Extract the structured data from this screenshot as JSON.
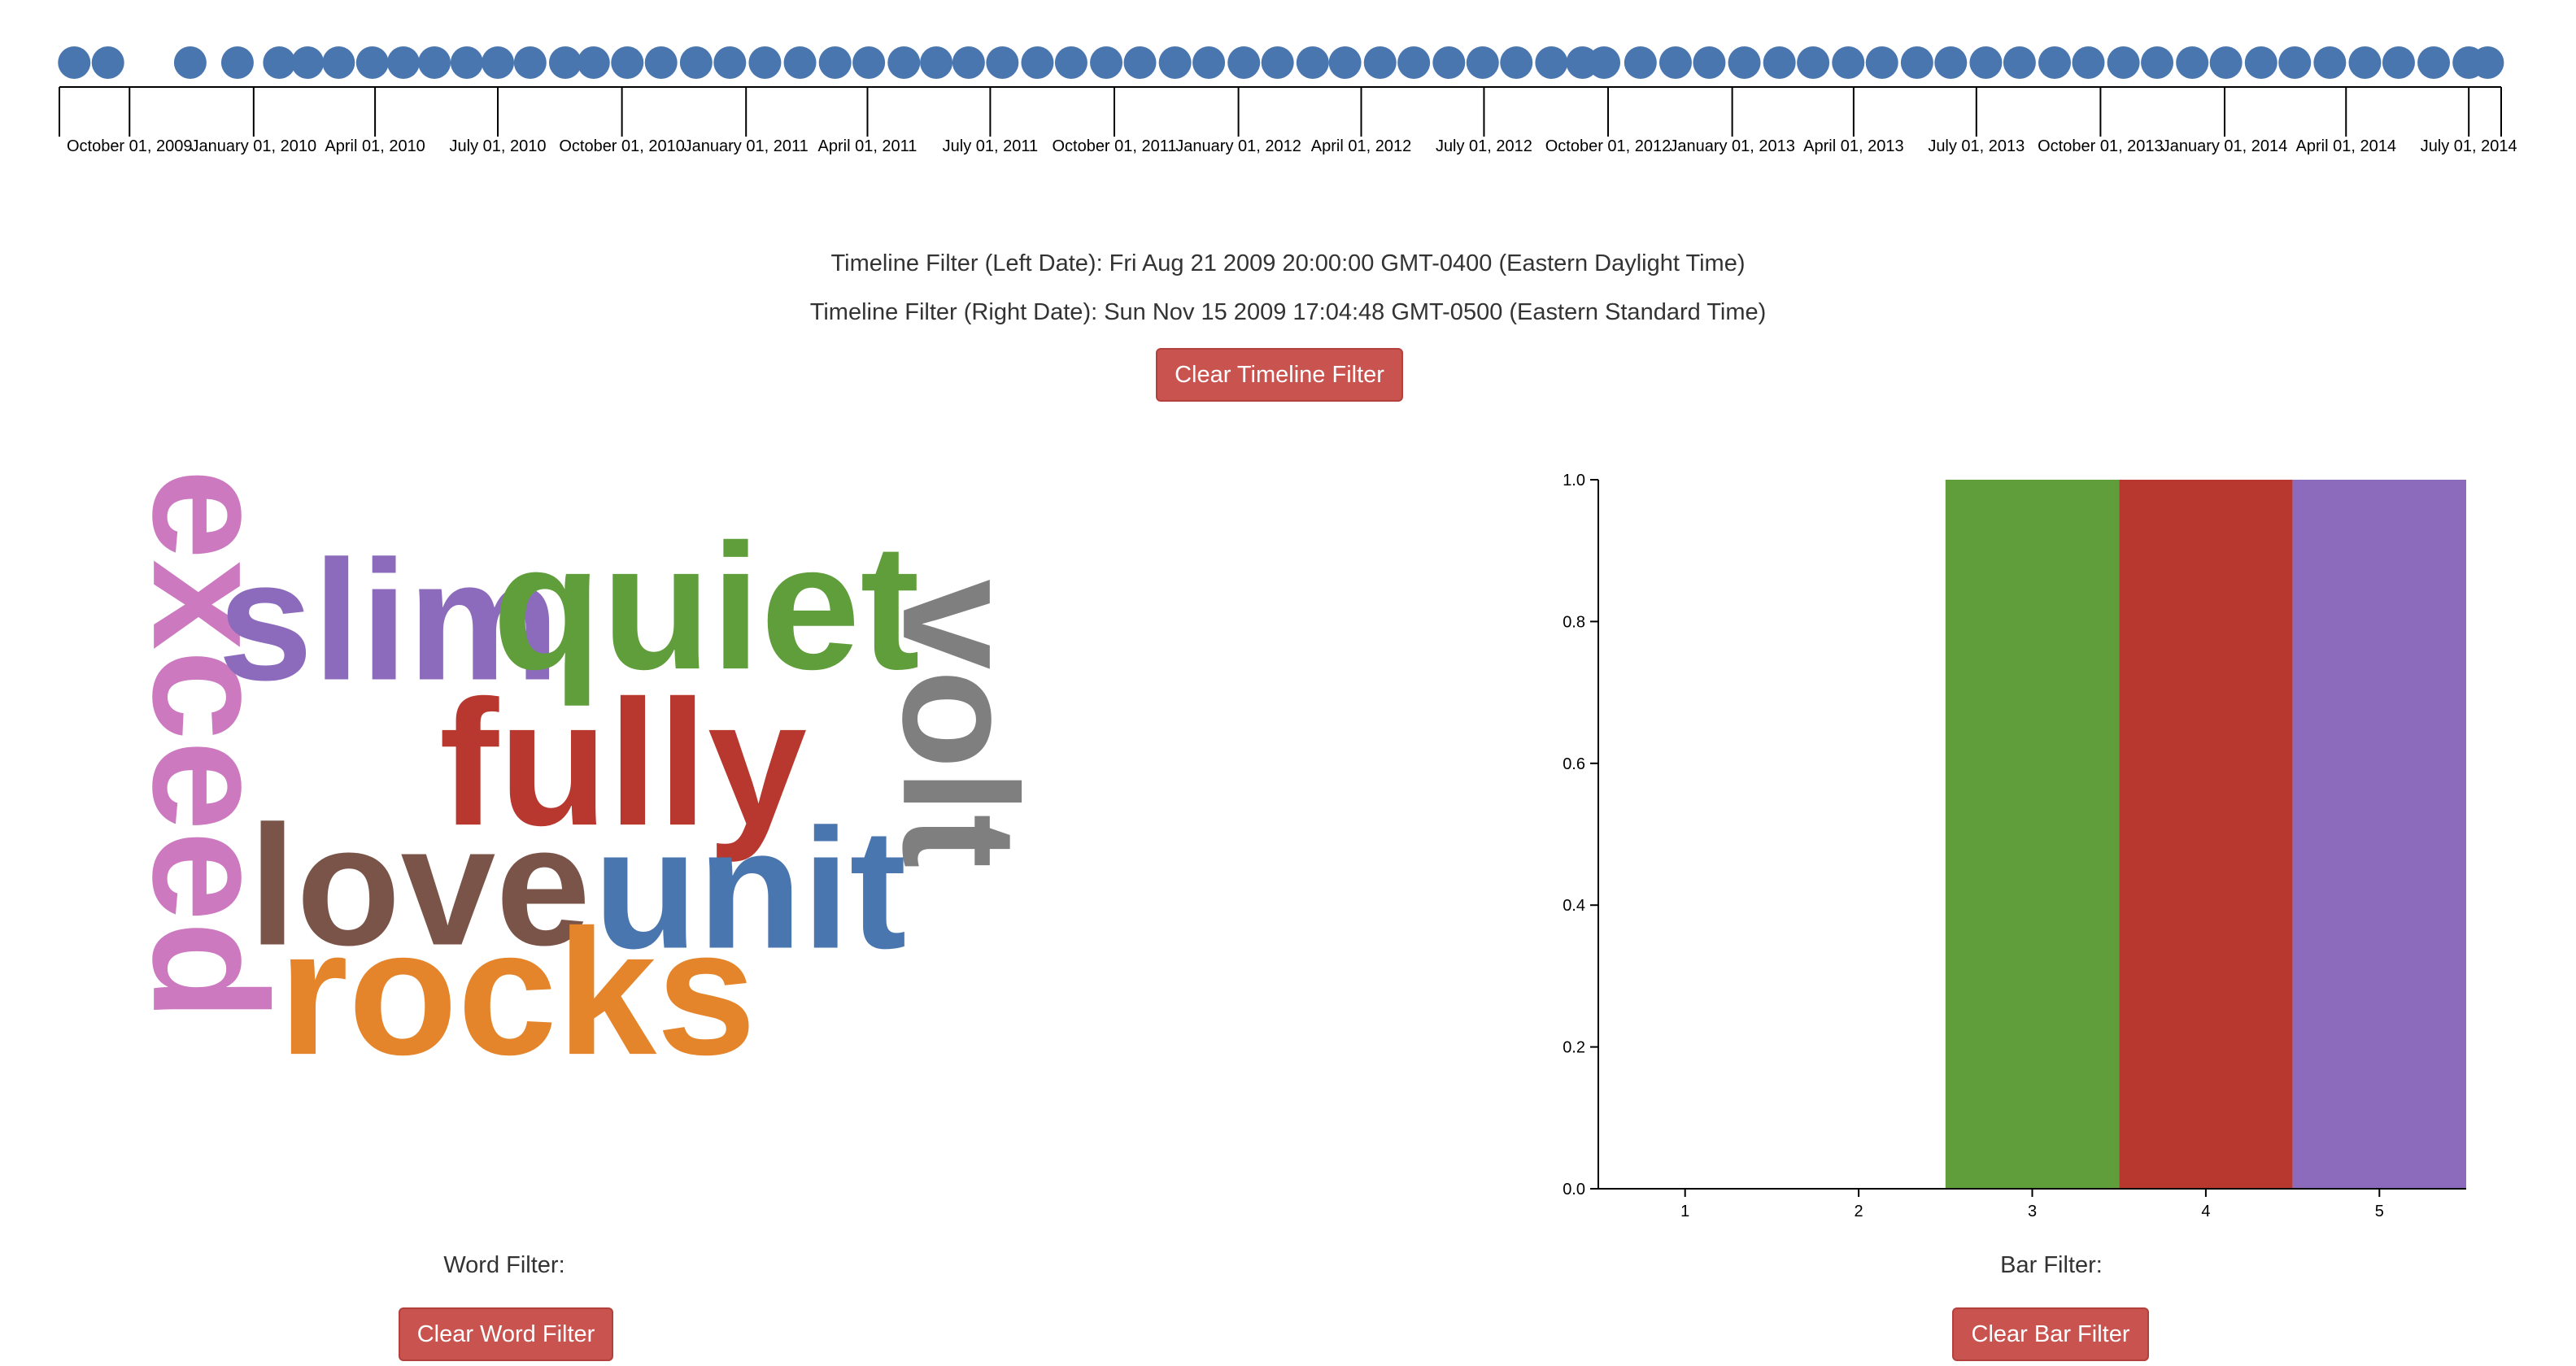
{
  "timeline": {
    "ticks": [
      "October 01, 2009",
      "January 01, 2010",
      "April 01, 2010",
      "July 01, 2010",
      "October 01, 2010",
      "January 01, 2011",
      "April 01, 2011",
      "July 01, 2011",
      "October 01, 2011",
      "January 01, 2012",
      "April 01, 2012",
      "July 01, 2012",
      "October 01, 2012",
      "January 01, 2013",
      "April 01, 2013",
      "July 01, 2013",
      "October 01, 2013",
      "January 01, 2014",
      "April 01, 2014",
      "July 01, 2014"
    ],
    "point_color": "#4a76b0",
    "points": [
      "2009-08-21",
      "2009-09-15",
      "2009-11-15",
      "2009-12-20",
      "2010-01-20",
      "2010-02-10",
      "2010-03-05",
      "2010-03-30",
      "2010-04-22",
      "2010-05-15",
      "2010-06-08",
      "2010-07-01",
      "2010-07-25",
      "2010-08-20",
      "2010-09-10",
      "2010-10-05",
      "2010-10-30",
      "2010-11-25",
      "2010-12-20",
      "2011-01-15",
      "2011-02-10",
      "2011-03-08",
      "2011-04-02",
      "2011-04-28",
      "2011-05-22",
      "2011-06-15",
      "2011-07-10",
      "2011-08-05",
      "2011-08-30",
      "2011-09-25",
      "2011-10-20",
      "2011-11-15",
      "2011-12-10",
      "2012-01-05",
      "2012-01-30",
      "2012-02-25",
      "2012-03-20",
      "2012-04-15",
      "2012-05-10",
      "2012-06-05",
      "2012-06-30",
      "2012-07-25",
      "2012-08-20",
      "2012-09-12",
      "2012-09-28",
      "2012-10-25",
      "2012-11-20",
      "2012-12-15",
      "2013-01-10",
      "2013-02-05",
      "2013-03-02",
      "2013-03-28",
      "2013-04-22",
      "2013-05-18",
      "2013-06-12",
      "2013-07-08",
      "2013-08-02",
      "2013-08-28",
      "2013-09-22",
      "2013-10-18",
      "2013-11-12",
      "2013-12-08",
      "2014-01-02",
      "2014-01-28",
      "2014-02-22",
      "2014-03-20",
      "2014-04-15",
      "2014-05-10",
      "2014-06-05",
      "2014-07-01",
      "2014-07-15"
    ]
  },
  "filters": {
    "left_date_text": "Timeline Filter (Left Date): Fri Aug 21 2009 20:00:00 GMT-0400 (Eastern Daylight Time)",
    "right_date_text": "Timeline Filter (Right Date): Sun Nov 15 2009 17:04:48 GMT-0500 (Eastern Standard Time)",
    "clear_timeline_label": "Clear Timeline Filter",
    "word_filter_label": "Word Filter:",
    "clear_word_label": "Clear Word Filter",
    "bar_filter_label": "Bar Filter:",
    "clear_bar_label": "Clear Bar Filter",
    "button_color": "#c9534f"
  },
  "word_cloud": {
    "words": [
      {
        "text": "exceed",
        "color": "#cc79c0",
        "rotated": true
      },
      {
        "text": "slim",
        "color": "#8c6bbd",
        "rotated": false
      },
      {
        "text": "quiet",
        "color": "#5f9e3a",
        "rotated": false
      },
      {
        "text": "volt",
        "color": "#7f7f7f",
        "rotated": true
      },
      {
        "text": "fully",
        "color": "#b8382f",
        "rotated": false
      },
      {
        "text": "love",
        "color": "#7b5449",
        "rotated": false
      },
      {
        "text": "unit",
        "color": "#4a76b0",
        "rotated": false
      },
      {
        "text": "rocks",
        "color": "#e5852b",
        "rotated": false
      }
    ]
  },
  "chart_data": {
    "type": "bar",
    "categories": [
      "1",
      "2",
      "3",
      "4",
      "5"
    ],
    "values": [
      0,
      0,
      1.0,
      1.0,
      1.0
    ],
    "colors": [
      "#4a76b0",
      "#e5852b",
      "#5f9e3a",
      "#b8382f",
      "#8c6bbd"
    ],
    "y_ticks": [
      "0.0",
      "0.2",
      "0.4",
      "0.6",
      "0.8",
      "1.0"
    ],
    "ylim": [
      0,
      1.0
    ],
    "title": "",
    "xlabel": "",
    "ylabel": ""
  }
}
